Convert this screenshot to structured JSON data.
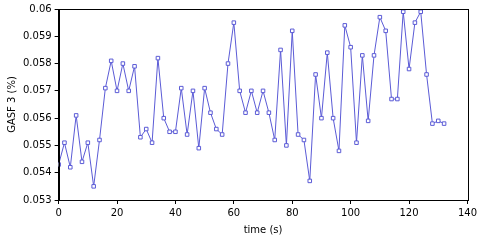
{
  "chart_data": {
    "type": "line",
    "x_label": "time (s)",
    "y_label": "GASF 3 (%)",
    "x": [
      0,
      2,
      4,
      6,
      8,
      10,
      12,
      14,
      16,
      18,
      20,
      22,
      24,
      26,
      28,
      30,
      32,
      34,
      36,
      38,
      40,
      42,
      44,
      46,
      48,
      50,
      52,
      54,
      56,
      58,
      60,
      62,
      64,
      66,
      68,
      70,
      72,
      74,
      76,
      78,
      80,
      82,
      84,
      86,
      88,
      90,
      92,
      94,
      96,
      98,
      100,
      102,
      104,
      106,
      108,
      110,
      112,
      114,
      116,
      118,
      120,
      122,
      124,
      126,
      128,
      130,
      132
    ],
    "values": [
      0.0543,
      0.0551,
      0.0542,
      0.0561,
      0.0544,
      0.0551,
      0.0535,
      0.0552,
      0.0571,
      0.0581,
      0.057,
      0.058,
      0.057,
      0.0579,
      0.0553,
      0.0556,
      0.0551,
      0.0582,
      0.056,
      0.0555,
      0.0555,
      0.0571,
      0.0554,
      0.057,
      0.0549,
      0.0571,
      0.0562,
      0.0556,
      0.0554,
      0.058,
      0.0595,
      0.057,
      0.0562,
      0.057,
      0.0562,
      0.057,
      0.0562,
      0.0552,
      0.0585,
      0.055,
      0.0592,
      0.0554,
      0.0552,
      0.0537,
      0.0576,
      0.056,
      0.0584,
      0.056,
      0.0548,
      0.0594,
      0.0586,
      0.0551,
      0.0583,
      0.0559,
      0.0583,
      0.0597,
      0.0592,
      0.0567,
      0.0567,
      0.0599,
      0.0578,
      0.0595,
      0.0599,
      0.0576,
      0.0558,
      0.0559,
      0.0558
    ],
    "color": "#5b5bd6",
    "marker": "square",
    "line_style": "solid",
    "xlim": [
      0,
      140
    ],
    "xticks": [
      0,
      20,
      40,
      60,
      80,
      100,
      120,
      140
    ],
    "ylim": [
      0.053,
      0.06
    ],
    "yticks": [
      0.053,
      0.054,
      0.055,
      0.056,
      0.057,
      0.058,
      0.059,
      0.06
    ],
    "grid": false
  }
}
